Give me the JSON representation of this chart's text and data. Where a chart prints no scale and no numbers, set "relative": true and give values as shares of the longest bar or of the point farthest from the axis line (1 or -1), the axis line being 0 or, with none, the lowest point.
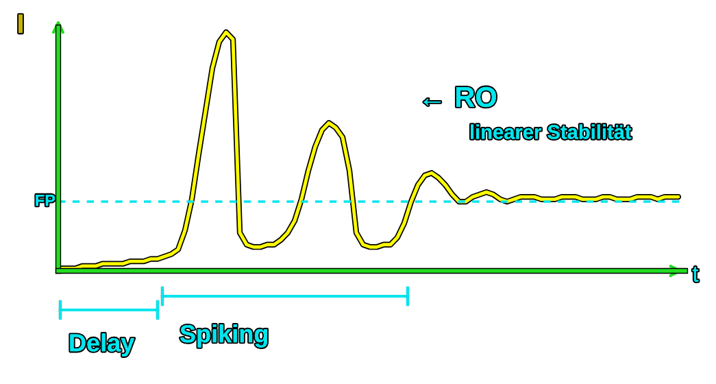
{
  "chart_data": {
    "type": "line",
    "relative": true,
    "xlabel": "t",
    "ylabel": "I",
    "categories": [
      null,
      null,
      null,
      null,
      null,
      null,
      null,
      null,
      null,
      null,
      null,
      null,
      null,
      null,
      null,
      null,
      null,
      null,
      null,
      null,
      null,
      null,
      null,
      null,
      null,
      null,
      null,
      null,
      null,
      null,
      null,
      null,
      null,
      null,
      null,
      null,
      null,
      null,
      null,
      null,
      null,
      null,
      null,
      null,
      null,
      null,
      null,
      null,
      null,
      null,
      null,
      null,
      null,
      null,
      null,
      null,
      null,
      null,
      null,
      null,
      null,
      null,
      null,
      null,
      null,
      null,
      null,
      null,
      null,
      null,
      null,
      null,
      null,
      null,
      null,
      null,
      null,
      null,
      null,
      null,
      null,
      null,
      null,
      null,
      null,
      null,
      null,
      null,
      null,
      null,
      null
    ],
    "series": [
      {
        "color": "#ffff00",
        "values": [
          0.01,
          0.01,
          0.01,
          0.02,
          0.02,
          0.02,
          0.03,
          0.03,
          0.03,
          0.03,
          0.04,
          0.04,
          0.04,
          0.05,
          0.05,
          0.06,
          0.07,
          0.09,
          0.17,
          0.3,
          0.49,
          0.67,
          0.85,
          0.96,
          1,
          0.97,
          0.16,
          0.11,
          0.1,
          0.1,
          0.11,
          0.11,
          0.13,
          0.16,
          0.21,
          0.3,
          0.42,
          0.52,
          0.59,
          0.62,
          0.6,
          0.56,
          0.42,
          0.16,
          0.11,
          0.1,
          0.1,
          0.11,
          0.11,
          0.14,
          0.2,
          0.29,
          0.36,
          0.4,
          0.41,
          0.39,
          0.36,
          0.32,
          0.29,
          0.29,
          0.31,
          0.32,
          0.33,
          0.32,
          0.3,
          0.29,
          0.3,
          0.31,
          0.31,
          0.31,
          0.3,
          0.3,
          0.3,
          0.31,
          0.31,
          0.31,
          0.3,
          0.3,
          0.3,
          0.31,
          0.31,
          0.3,
          0.3,
          0.3,
          0.31,
          0.31,
          0.31,
          0.3,
          0.31,
          0.31,
          0.31
        ]
      }
    ],
    "ref_lines": [
      {
        "axis": "y",
        "value": 0.29,
        "label": "FP",
        "color": "#00e5ee",
        "line_style": "dashed"
      }
    ],
    "annotations": [
      "← RO",
      "linearer Stabilität",
      "Delay",
      "Spiking"
    ],
    "legend": false,
    "line_style": "solid",
    "marker": "none"
  }
}
